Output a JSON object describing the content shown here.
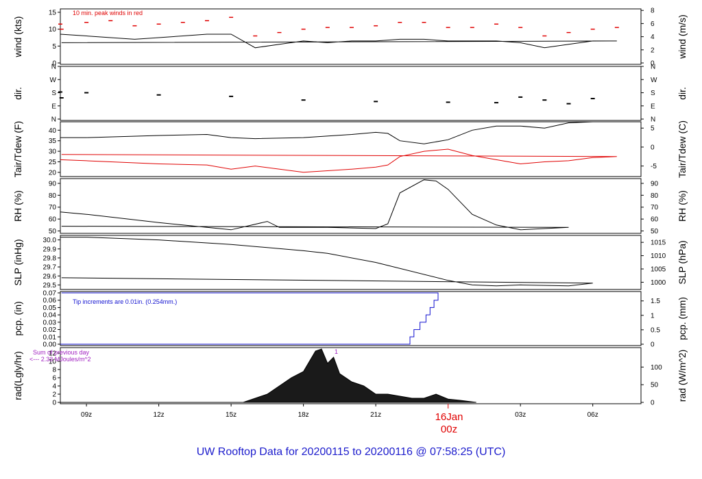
{
  "title": "UW Rooftop Data for 20200115  to  20200116 @ 07:58:25  (UTC)",
  "x_ticks": [
    "09z",
    "12z",
    "15z",
    "18z",
    "21z",
    "03z",
    "06z"
  ],
  "day_marker": {
    "label": "16Jan",
    "sub": "00z"
  },
  "colors": {
    "black": "#000000",
    "red": "#e00000",
    "blue": "#1010d0",
    "purple": "#a020c0",
    "title": "#1a1acc"
  },
  "panels": [
    {
      "id": "wind",
      "left_label": "wind (kts)",
      "right_label": "wind (m/s)",
      "left_ticks": [
        "0",
        "5",
        "10",
        "15"
      ],
      "right_ticks": [
        "0",
        "2",
        "4",
        "6",
        "8"
      ],
      "annotations": [
        "10 min. peak winds in red"
      ]
    },
    {
      "id": "dir",
      "left_label": "dir.",
      "right_label": "dir.",
      "left_ticks": [
        "N",
        "E",
        "S",
        "W",
        "N"
      ],
      "right_ticks": [
        "N",
        "E",
        "S",
        "W",
        "N"
      ]
    },
    {
      "id": "temp",
      "left_label": "Tair/Tdew (F)",
      "right_label": "Tair/Tdew (C)",
      "left_ticks": [
        "20",
        "25",
        "30",
        "35",
        "40"
      ],
      "right_ticks": [
        "-5",
        "0",
        "5"
      ]
    },
    {
      "id": "rh",
      "left_label": "RH (%)",
      "right_label": "RH (%)",
      "left_ticks": [
        "50",
        "60",
        "70",
        "80",
        "90"
      ],
      "right_ticks": [
        "50",
        "60",
        "70",
        "80",
        "90"
      ]
    },
    {
      "id": "slp",
      "left_label": "SLP (inHg)",
      "right_label": "SLP (hPa)",
      "left_ticks": [
        "29.5",
        "29.6",
        "29.7",
        "29.8",
        "29.9",
        "30.0"
      ],
      "right_ticks": [
        "1000",
        "1005",
        "1010",
        "1015"
      ]
    },
    {
      "id": "pcp",
      "left_label": "pcp. (in)",
      "right_label": "pcp. (mm)",
      "left_ticks": [
        "0.00",
        "0.01",
        "0.02",
        "0.03",
        "0.04",
        "0.05",
        "0.06",
        "0.07"
      ],
      "right_ticks": [
        "0",
        "0.5",
        "1",
        "1.5"
      ],
      "annotations": [
        "Tip increments are 0.01in. (0.254mm.)"
      ]
    },
    {
      "id": "rad",
      "left_label": "rad(Lgly/hr)",
      "right_label": "rad (W/m^2)",
      "left_ticks": [
        "0",
        "2",
        "4",
        "6",
        "8",
        "10",
        "12"
      ],
      "right_ticks": [
        "0",
        "50",
        "100"
      ],
      "annotations": [
        "Sum of previous day",
        "<--- 2.33 MJoules/m^2",
        "1"
      ]
    }
  ],
  "chart_data": [
    {
      "type": "line",
      "panel": "wind",
      "ylim": [
        0,
        16
      ],
      "x": [
        "07:55",
        "09:00",
        "10:00",
        "11:00",
        "12:00",
        "13:00",
        "14:00",
        "15:00",
        "16:00",
        "17:00",
        "18:00",
        "19:00",
        "20:00",
        "21:00",
        "22:00",
        "23:00",
        "00:00",
        "01:00",
        "02:00",
        "03:00",
        "04:00",
        "05:00",
        "06:00",
        "07:00",
        "07:58"
      ],
      "series": [
        {
          "name": "",
          "color": "#000000",
          "values": [
            8.5,
            8,
            7.5,
            7,
            7.5,
            8,
            8.5,
            8.5,
            4.5,
            5.5,
            6.5,
            6,
            6.5,
            6.5,
            7,
            7,
            6.5,
            6.5,
            6.5,
            6,
            4.5,
            5.5,
            6.5,
            6.5,
            6
          ]
        },
        {
          "name": "10 min. peak winds in red",
          "color": "#e00000",
          "values": [
            11.5,
            12,
            12.5,
            11,
            11.5,
            12,
            12.5,
            13.5,
            8,
            9,
            10,
            10.5,
            10.5,
            11,
            12,
            12,
            10.5,
            10.5,
            11.5,
            10.5,
            8,
            9,
            10,
            10.5,
            10
          ]
        }
      ]
    },
    {
      "type": "scatter",
      "panel": "dir",
      "ylim": [
        0,
        360
      ],
      "unit": "degrees",
      "x": [
        "07:55",
        "09:00",
        "12:00",
        "15:00",
        "18:00",
        "21:00",
        "00:00",
        "02:00",
        "03:00",
        "04:00",
        "05:00",
        "06:00",
        "07:58"
      ],
      "values": [
        185,
        180,
        165,
        155,
        130,
        120,
        115,
        112,
        150,
        130,
        105,
        140,
        145
      ]
    },
    {
      "type": "line",
      "panel": "temp",
      "ylim": [
        18,
        44
      ],
      "x": [
        "07:55",
        "09:00",
        "12:00",
        "14:00",
        "15:00",
        "16:00",
        "18:00",
        "20:00",
        "21:00",
        "21:30",
        "22:00",
        "23:00",
        "00:00",
        "01:00",
        "02:00",
        "03:00",
        "04:00",
        "05:00",
        "06:00",
        "07:00",
        "07:58"
      ],
      "series": [
        {
          "name": "",
          "color": "#000000",
          "values": [
            36.5,
            36.5,
            37.5,
            38,
            36.5,
            36,
            36.5,
            38,
            39,
            38.5,
            35,
            33.5,
            35.5,
            40,
            42,
            42,
            41,
            43.5,
            44,
            44,
            44
          ]
        },
        {
          "name": "",
          "color": "#e00000",
          "values": [
            26,
            25.5,
            24,
            23.5,
            21.5,
            23,
            20,
            21.5,
            22.5,
            23.5,
            27.5,
            30,
            31,
            28,
            26,
            24,
            25,
            25.5,
            27,
            27.5,
            28.5
          ]
        }
      ]
    },
    {
      "type": "line",
      "panel": "rh",
      "ylim": [
        48,
        94
      ],
      "x": [
        "07:55",
        "09:00",
        "12:00",
        "14:00",
        "15:00",
        "16:30",
        "17:00",
        "19:00",
        "21:00",
        "21:30",
        "22:00",
        "23:00",
        "23:30",
        "00:00",
        "01:00",
        "02:00",
        "03:00",
        "05:00",
        "07:58"
      ],
      "values": [
        66,
        64,
        57,
        53,
        51,
        58,
        53,
        53,
        52,
        56,
        82,
        93,
        92,
        85,
        64,
        55,
        51,
        53,
        54
      ]
    },
    {
      "type": "line",
      "panel": "slp",
      "ylim": [
        29.45,
        30.05
      ],
      "x": [
        "07:55",
        "09:00",
        "12:00",
        "15:00",
        "18:00",
        "19:00",
        "21:00",
        "00:00",
        "01:00",
        "02:00",
        "03:00",
        "05:00",
        "06:00",
        "07:58"
      ],
      "values": [
        30.03,
        30.03,
        30.0,
        29.95,
        29.88,
        29.85,
        29.75,
        29.55,
        29.5,
        29.49,
        29.5,
        29.49,
        29.52,
        29.58
      ]
    },
    {
      "type": "line",
      "panel": "pcp",
      "ylim": [
        0,
        0.07
      ],
      "x": [
        "07:55",
        "22:15",
        "22:25",
        "22:35",
        "22:50",
        "23:05",
        "23:15",
        "23:25",
        "23:35",
        "07:58"
      ],
      "values": [
        0,
        0,
        0.01,
        0.02,
        0.03,
        0.04,
        0.05,
        0.06,
        0.07,
        0.07
      ]
    },
    {
      "type": "area",
      "panel": "rad",
      "ylim": [
        0,
        13
      ],
      "x": [
        "07:55",
        "15:30",
        "16:00",
        "16:30",
        "17:00",
        "17:30",
        "18:00",
        "18:30",
        "18:45",
        "19:00",
        "19:15",
        "19:30",
        "20:00",
        "20:30",
        "21:00",
        "21:30",
        "22:00",
        "22:30",
        "23:00",
        "23:30",
        "00:00",
        "00:30",
        "01:10",
        "07:58"
      ],
      "values": [
        0,
        0,
        1,
        2,
        4,
        6,
        7.5,
        12.5,
        13,
        9.5,
        11,
        7,
        5,
        4,
        2,
        2,
        1.5,
        1,
        1,
        2,
        0.8,
        0.5,
        0,
        0
      ]
    }
  ]
}
